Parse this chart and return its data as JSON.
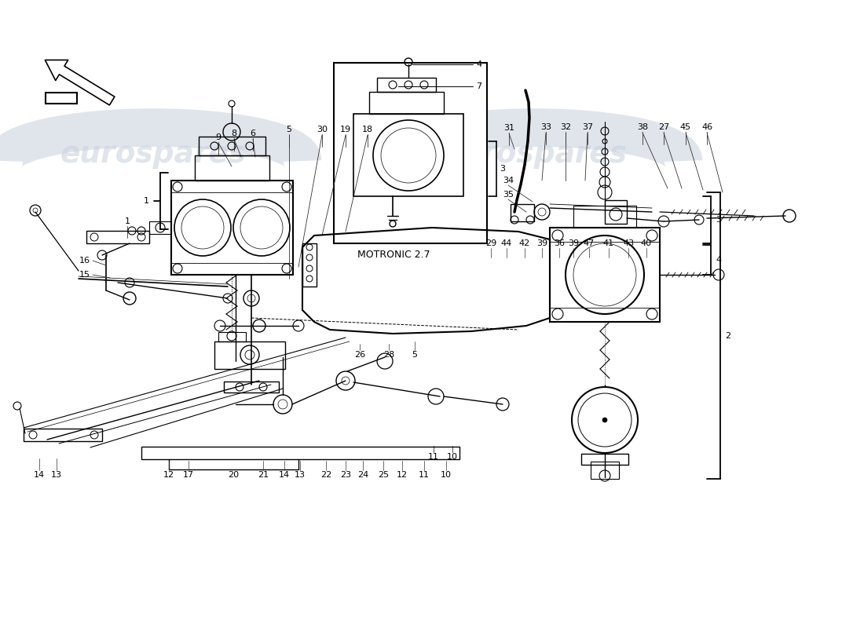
{
  "bg_color": "#ffffff",
  "watermark_text": "eurospares",
  "watermark_color": "#c8d0dc",
  "watermark_alpha": 0.55,
  "motronic_label": "MOTRONIC 2.7"
}
